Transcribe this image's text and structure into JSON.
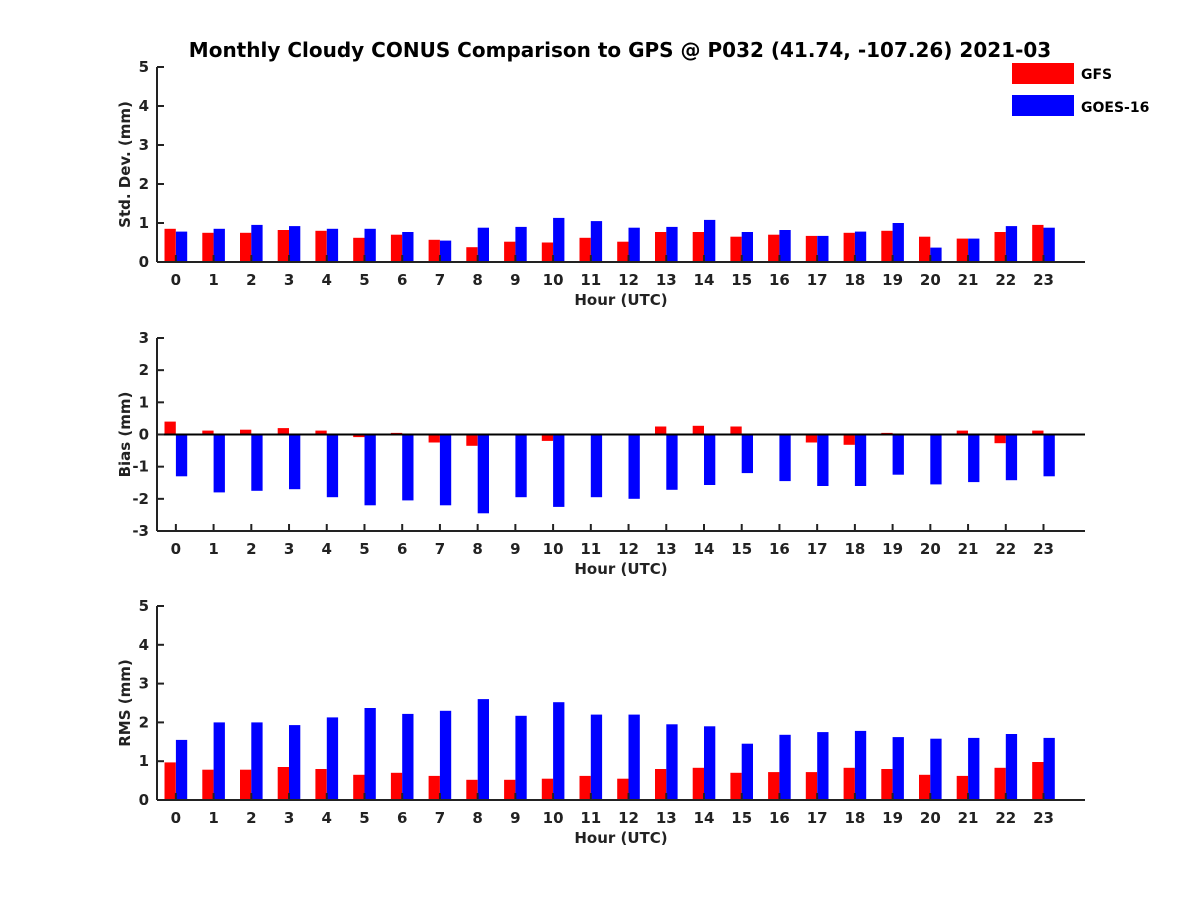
{
  "chart_data": {
    "type": "bar",
    "title": "Monthly Cloudy CONUS Comparison to GPS @ P032 (41.74, -107.26) 2021-03",
    "legend": {
      "placement": "top-right",
      "entries": [
        "GFS",
        "GOES-16"
      ]
    },
    "colors": {
      "GFS": "#ff0000",
      "GOES-16": "#0000ff"
    },
    "panels": [
      {
        "ylabel": "Std. Dev. (mm)",
        "xlabel": "Hour (UTC)",
        "ylim": [
          0,
          5
        ],
        "yticks": [
          "0",
          "1",
          "2",
          "3",
          "4",
          "5"
        ],
        "categories": [
          "0",
          "1",
          "2",
          "3",
          "4",
          "5",
          "6",
          "7",
          "8",
          "9",
          "10",
          "11",
          "12",
          "13",
          "14",
          "15",
          "16",
          "17",
          "18",
          "19",
          "20",
          "21",
          "22",
          "23"
        ],
        "series": [
          {
            "name": "GFS",
            "values": [
              0.85,
              0.75,
              0.75,
              0.82,
              0.8,
              0.62,
              0.7,
              0.57,
              0.38,
              0.52,
              0.5,
              0.62,
              0.52,
              0.77,
              0.77,
              0.65,
              0.7,
              0.67,
              0.75,
              0.8,
              0.65,
              0.6,
              0.77,
              0.95
            ]
          },
          {
            "name": "GOES-16",
            "values": [
              0.78,
              0.85,
              0.95,
              0.92,
              0.85,
              0.85,
              0.77,
              0.55,
              0.88,
              0.9,
              1.13,
              1.05,
              0.88,
              0.9,
              1.08,
              0.77,
              0.82,
              0.67,
              0.78,
              1.0,
              0.37,
              0.6,
              0.92,
              0.88
            ]
          }
        ]
      },
      {
        "ylabel": "Bias (mm)",
        "xlabel": "Hour (UTC)",
        "ylim": [
          -3,
          3
        ],
        "yticks": [
          "-3",
          "-2",
          "-1",
          "0",
          "1",
          "2",
          "3"
        ],
        "categories": [
          "0",
          "1",
          "2",
          "3",
          "4",
          "5",
          "6",
          "7",
          "8",
          "9",
          "10",
          "11",
          "12",
          "13",
          "14",
          "15",
          "16",
          "17",
          "18",
          "19",
          "20",
          "21",
          "22",
          "23"
        ],
        "series": [
          {
            "name": "GFS",
            "values": [
              0.4,
              0.12,
              0.15,
              0.2,
              0.12,
              -0.08,
              0.05,
              -0.25,
              -0.35,
              0.02,
              -0.2,
              -0.03,
              0.0,
              0.25,
              0.27,
              0.25,
              0.02,
              -0.25,
              -0.32,
              0.05,
              0.02,
              0.12,
              -0.27,
              0.12
            ]
          },
          {
            "name": "GOES-16",
            "values": [
              -1.3,
              -1.8,
              -1.75,
              -1.7,
              -1.95,
              -2.2,
              -2.05,
              -2.2,
              -2.45,
              -1.95,
              -2.25,
              -1.95,
              -2.0,
              -1.72,
              -1.57,
              -1.2,
              -1.45,
              -1.6,
              -1.6,
              -1.25,
              -1.55,
              -1.48,
              -1.42,
              -1.3
            ]
          }
        ]
      },
      {
        "ylabel": "RMS (mm)",
        "xlabel": "Hour (UTC)",
        "ylim": [
          0,
          5
        ],
        "yticks": [
          "0",
          "1",
          "2",
          "3",
          "4",
          "5"
        ],
        "categories": [
          "0",
          "1",
          "2",
          "3",
          "4",
          "5",
          "6",
          "7",
          "8",
          "9",
          "10",
          "11",
          "12",
          "13",
          "14",
          "15",
          "16",
          "17",
          "18",
          "19",
          "20",
          "21",
          "22",
          "23"
        ],
        "series": [
          {
            "name": "GFS",
            "values": [
              0.97,
              0.78,
              0.78,
              0.85,
              0.8,
              0.65,
              0.7,
              0.62,
              0.52,
              0.52,
              0.55,
              0.62,
              0.55,
              0.8,
              0.83,
              0.7,
              0.72,
              0.72,
              0.83,
              0.8,
              0.65,
              0.62,
              0.83,
              0.98
            ]
          },
          {
            "name": "GOES-16",
            "values": [
              1.55,
              2.0,
              2.0,
              1.93,
              2.13,
              2.37,
              2.22,
              2.3,
              2.6,
              2.17,
              2.52,
              2.2,
              2.2,
              1.95,
              1.9,
              1.45,
              1.68,
              1.75,
              1.78,
              1.62,
              1.58,
              1.6,
              1.7,
              1.6
            ]
          }
        ]
      }
    ]
  }
}
